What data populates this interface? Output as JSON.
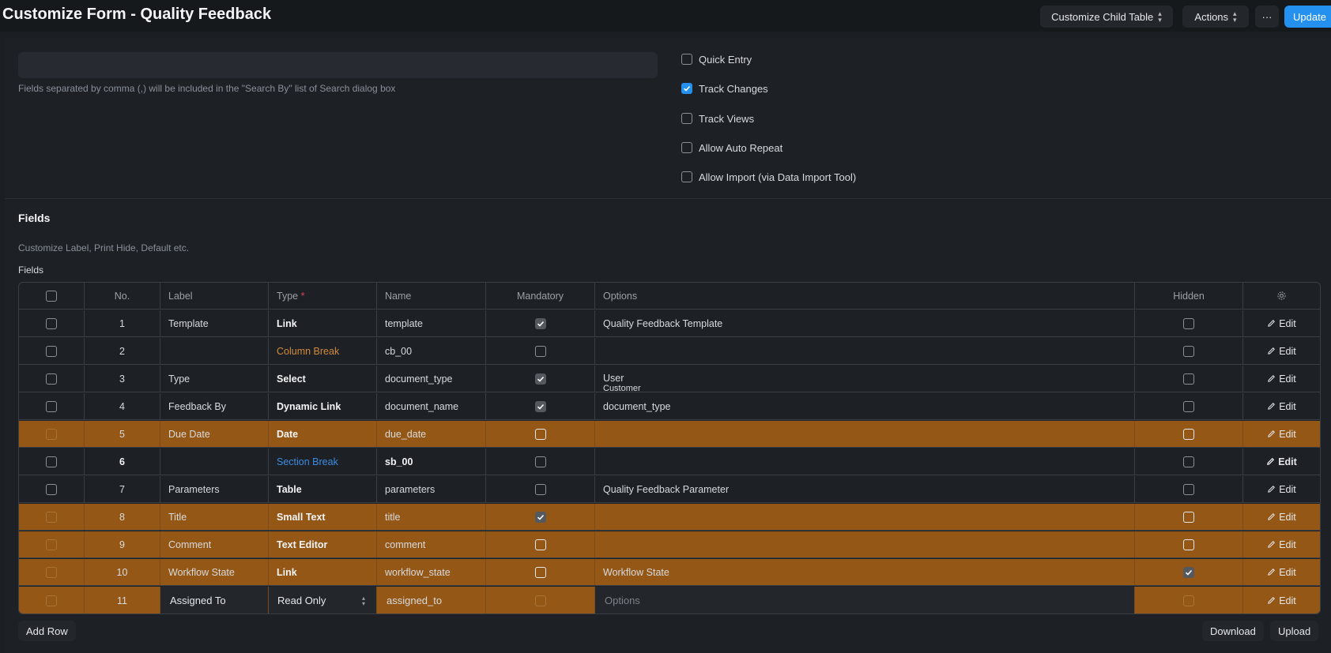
{
  "header": {
    "title": "Customize Form - Quality Feedback",
    "customize_child_table": "Customize Child Table",
    "actions": "Actions",
    "more": "···",
    "update": "Update"
  },
  "settings": {
    "search_fields_help": "Fields separated by comma (,) will be included in the \"Search By\" list of Search dialog box",
    "options": [
      {
        "label": "Quick Entry",
        "checked": false
      },
      {
        "label": "Track Changes",
        "checked": true
      },
      {
        "label": "Track Views",
        "checked": false
      },
      {
        "label": "Allow Auto Repeat",
        "checked": false
      },
      {
        "label": "Allow Import (via Data Import Tool)",
        "checked": false
      }
    ]
  },
  "fields_section": {
    "heading": "Fields",
    "description": "Customize Label, Print Hide, Default etc.",
    "table_label": "Fields",
    "columns": {
      "no": "No.",
      "label": "Label",
      "type": "Type",
      "type_required": "*",
      "name": "Name",
      "mandatory": "Mandatory",
      "options": "Options",
      "hidden": "Hidden"
    },
    "edit_label": "Edit",
    "rows": [
      {
        "no": "1",
        "label": "Template",
        "type": "Link",
        "name": "template",
        "options": "Quality Feedback Template"
      },
      {
        "no": "2",
        "label": "",
        "type": "Column Break",
        "name": "cb_00",
        "options": ""
      },
      {
        "no": "3",
        "label": "Type",
        "type": "Select",
        "name": "document_type",
        "options": "User",
        "options_cut": "Customer"
      },
      {
        "no": "4",
        "label": "Feedback By",
        "type": "Dynamic Link",
        "name": "document_name",
        "options": "document_type"
      },
      {
        "no": "5",
        "label": "Due Date",
        "type": "Date",
        "name": "due_date",
        "options": ""
      },
      {
        "no": "6",
        "label": "",
        "type": "Section Break",
        "name": "sb_00",
        "options": ""
      },
      {
        "no": "7",
        "label": "Parameters",
        "type": "Table",
        "name": "parameters",
        "options": "Quality Feedback Parameter"
      },
      {
        "no": "8",
        "label": "Title",
        "type": "Small Text",
        "name": "title",
        "options": ""
      },
      {
        "no": "9",
        "label": "Comment",
        "type": "Text Editor",
        "name": "comment",
        "options": ""
      },
      {
        "no": "10",
        "label": "Workflow State",
        "type": "Link",
        "name": "workflow_state",
        "options": "Workflow State"
      },
      {
        "no": "11",
        "label": "Assigned To",
        "type": "Read Only",
        "name": "assigned_to",
        "options_placeholder": "Options"
      }
    ],
    "add_row": "Add Row",
    "download": "Download",
    "upload": "Upload"
  },
  "colors": {
    "primary": "#2490ef",
    "row_highlight": "#945716",
    "column_break": "#d38a3a",
    "section_break": "#3b8be0"
  }
}
